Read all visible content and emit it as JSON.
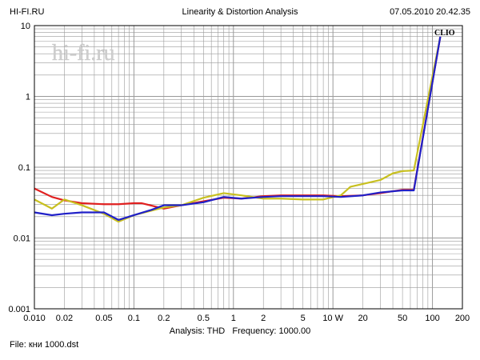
{
  "header": {
    "brand": "HI-FI.RU",
    "title": "Linearity & Distortion Analysis",
    "timestamp": "07.05.2010 20.42.35"
  },
  "watermark": "hi-fi.ru",
  "badge": "CLIO",
  "footer": {
    "analysis_label": "Analysis: THD",
    "frequency_label": "Frequency: 1000.00",
    "file_label": "File: кни 1000.dst"
  },
  "colors": {
    "background": "#ffffff",
    "grid": "#9a9a9a",
    "frame": "#000000",
    "red": "#e02020",
    "yellow": "#c8c020",
    "blue": "#2020c8"
  },
  "chart_data": {
    "type": "line",
    "x_scale": "log",
    "y_scale": "log",
    "xlim": [
      0.01,
      200
    ],
    "ylim": [
      0.001,
      10
    ],
    "x_ticks": [
      {
        "value": 0.01,
        "label": "0.010"
      },
      {
        "value": 0.02,
        "label": "0.02"
      },
      {
        "value": 0.05,
        "label": "0.05"
      },
      {
        "value": 0.1,
        "label": "0.1"
      },
      {
        "value": 0.2,
        "label": "0.2"
      },
      {
        "value": 0.5,
        "label": "0.5"
      },
      {
        "value": 1,
        "label": "1"
      },
      {
        "value": 2,
        "label": "2"
      },
      {
        "value": 5,
        "label": "5"
      },
      {
        "value": 10,
        "label": "10 W"
      },
      {
        "value": 20,
        "label": "20"
      },
      {
        "value": 50,
        "label": "50"
      },
      {
        "value": 100,
        "label": "100"
      },
      {
        "value": 200,
        "label": "200"
      }
    ],
    "y_ticks": [
      {
        "value": 10,
        "label": "10"
      },
      {
        "value": 1,
        "label": "1"
      },
      {
        "value": 0.1,
        "label": "0.1"
      },
      {
        "value": 0.01,
        "label": "0.01"
      },
      {
        "value": 0.001,
        "label": "0.001"
      }
    ],
    "grid": true,
    "series": [
      {
        "color": "red",
        "x": [
          0.01,
          0.015,
          0.02,
          0.03,
          0.05,
          0.07,
          0.1,
          0.12,
          0.2,
          0.3,
          0.5,
          0.8,
          1.2,
          2,
          3,
          5,
          8,
          12,
          20,
          30,
          50,
          65,
          120
        ],
        "y": [
          0.05,
          0.038,
          0.034,
          0.031,
          0.03,
          0.03,
          0.031,
          0.031,
          0.026,
          0.029,
          0.033,
          0.037,
          0.036,
          0.039,
          0.04,
          0.04,
          0.04,
          0.039,
          0.04,
          0.043,
          0.048,
          0.048,
          7
        ]
      },
      {
        "color": "yellow",
        "x": [
          0.01,
          0.015,
          0.02,
          0.03,
          0.05,
          0.07,
          0.1,
          0.2,
          0.3,
          0.5,
          0.8,
          1.2,
          2,
          3,
          5,
          8,
          12,
          15,
          20,
          30,
          40,
          50,
          65,
          120
        ],
        "y": [
          0.035,
          0.026,
          0.035,
          0.029,
          0.022,
          0.017,
          0.021,
          0.027,
          0.029,
          0.037,
          0.043,
          0.04,
          0.036,
          0.036,
          0.035,
          0.035,
          0.04,
          0.053,
          0.058,
          0.066,
          0.082,
          0.088,
          0.09,
          7
        ]
      },
      {
        "color": "blue",
        "x": [
          0.01,
          0.015,
          0.02,
          0.03,
          0.05,
          0.07,
          0.1,
          0.15,
          0.2,
          0.3,
          0.5,
          0.8,
          1.2,
          2,
          3,
          5,
          8,
          12,
          20,
          30,
          50,
          65,
          120
        ],
        "y": [
          0.023,
          0.021,
          0.022,
          0.023,
          0.023,
          0.018,
          0.021,
          0.025,
          0.029,
          0.029,
          0.032,
          0.038,
          0.036,
          0.038,
          0.039,
          0.039,
          0.039,
          0.038,
          0.04,
          0.044,
          0.047,
          0.047,
          7
        ]
      }
    ]
  }
}
